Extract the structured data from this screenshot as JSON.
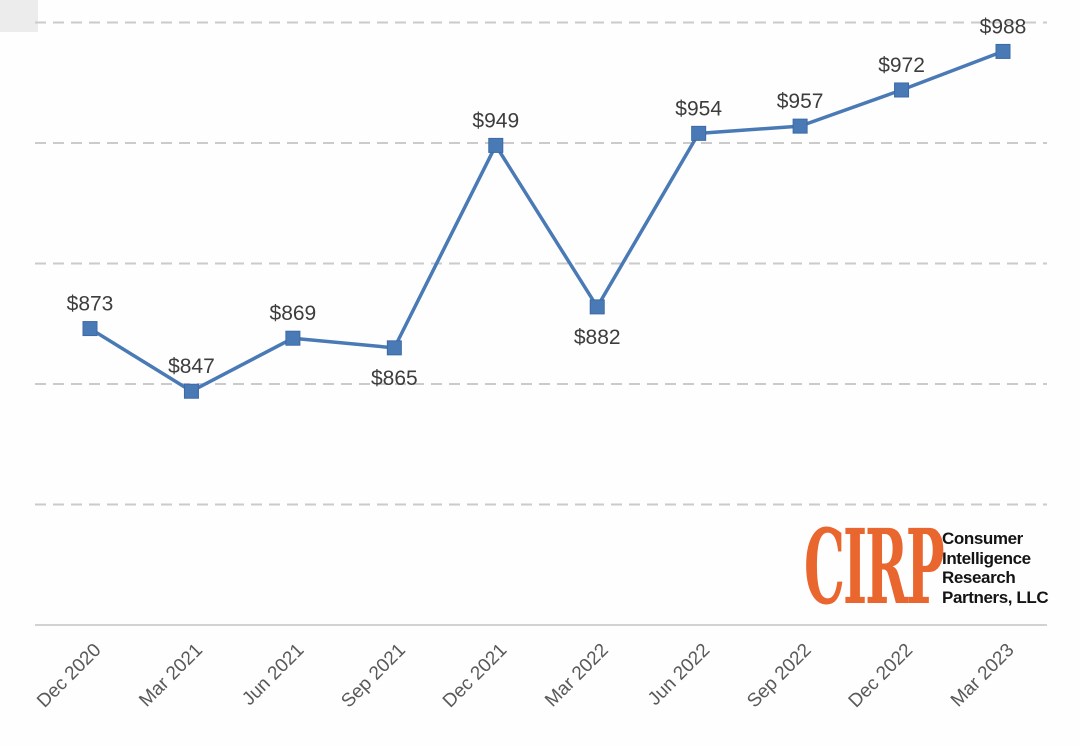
{
  "page": {
    "background": "#ffffff"
  },
  "chart_data": {
    "type": "line",
    "title": "",
    "xlabel": "",
    "ylabel": "",
    "categories": [
      "Dec 2020",
      "Mar 2021",
      "Jun 2021",
      "Sep 2021",
      "Dec 2021",
      "Mar 2022",
      "Jun 2022",
      "Sep 2022",
      "Dec 2022",
      "Mar 2023"
    ],
    "values": [
      873,
      847,
      869,
      865,
      949,
      882,
      954,
      957,
      972,
      988
    ],
    "data_labels": [
      "$873",
      "$847",
      "$869",
      "$865",
      "$949",
      "$882",
      "$954",
      "$957",
      "$972",
      "$988"
    ],
    "label_positions": [
      "above",
      "above",
      "above",
      "below",
      "above",
      "below",
      "above",
      "above",
      "above",
      "above"
    ],
    "ylim": [
      750,
      1000
    ],
    "gridline_step": 50,
    "grid": "horizontal-dashed",
    "legend": "none",
    "styles": {
      "line_color": "#4a7ab5",
      "marker_color": "#4a7ab5",
      "marker_stroke": "#3c69a6",
      "marker_shape": "square",
      "gridline_color": "#cbcbcb",
      "axis_line_color": "#d2d2d2",
      "data_label_color": "#3d3d3d",
      "tick_label_color": "#595959"
    }
  },
  "logo": {
    "abbr": "CIRP",
    "abbr_color": "#e9662e",
    "lines": [
      "Consumer",
      "Intelligence",
      "Research",
      "Partners, LLC"
    ],
    "text_color": "#141414"
  }
}
